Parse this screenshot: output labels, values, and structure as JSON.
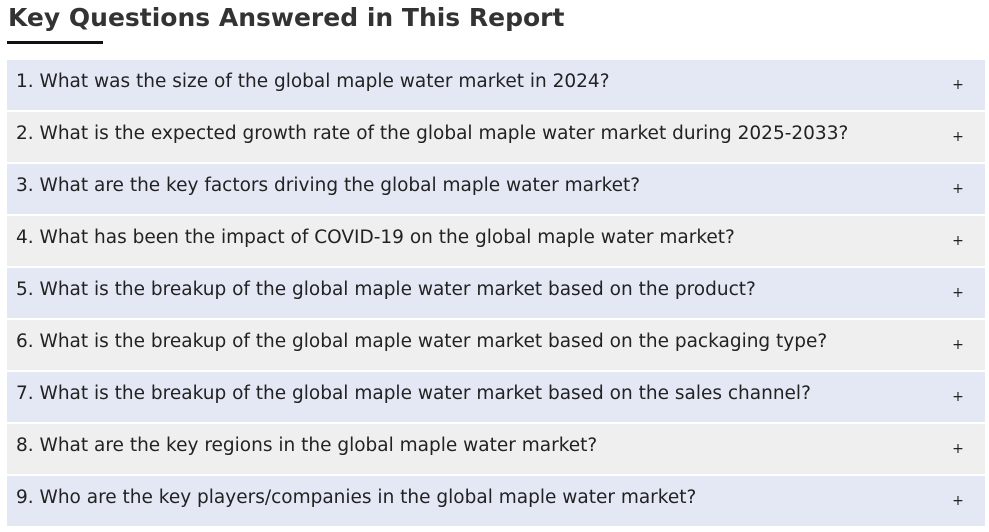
{
  "section": {
    "title": "Key Questions Answered in This Report"
  },
  "faq": {
    "toggle_symbol": "+",
    "items": [
      {
        "question": "1. What was the size of the global maple water market in 2024?"
      },
      {
        "question": "2. What is the expected growth rate of the global maple water market during 2025-2033?"
      },
      {
        "question": "3. What are the key factors driving the global maple water market?"
      },
      {
        "question": "4. What has been the impact of COVID-19 on the global maple water market?"
      },
      {
        "question": "5. What is the breakup of the global maple water market based on the product?"
      },
      {
        "question": "6. What is the breakup of the global maple water market based on the packaging type?"
      },
      {
        "question": "7. What is the breakup of the global maple water market based on the sales channel?"
      },
      {
        "question": "8. What are the key regions in the global maple water market?"
      },
      {
        "question": "9. Who are the key players/companies in the global maple water market?"
      }
    ]
  },
  "colors": {
    "row_odd": "#e4e8f5",
    "row_even": "#efefef",
    "heading_text": "#333333",
    "underline": "#111111"
  }
}
